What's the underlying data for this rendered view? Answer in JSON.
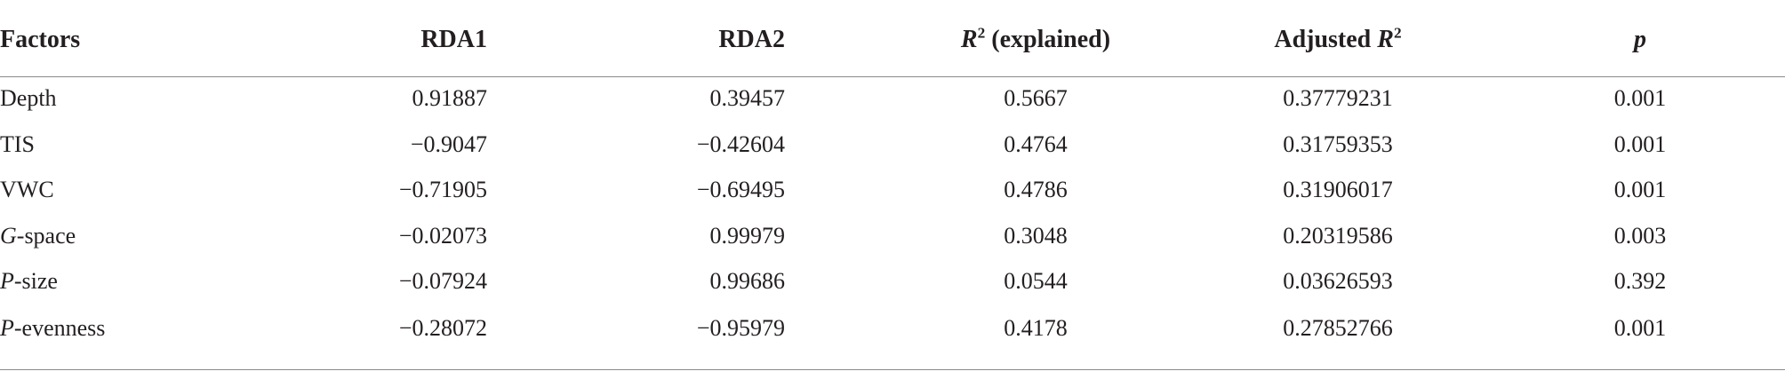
{
  "table": {
    "header": [
      "Factors",
      "RDA1",
      "RDA2",
      [
        "R",
        "2",
        " (explained)"
      ],
      [
        "Adjusted ",
        "R",
        "2"
      ],
      "p"
    ],
    "rows": [
      [
        "Depth",
        "0.91887",
        "0.39457",
        "0.5667",
        "0.37779231",
        "0.001"
      ],
      [
        "TIS",
        "−0.9047",
        "−0.42604",
        "0.4764",
        "0.31759353",
        "0.001"
      ],
      [
        "VWC",
        "−0.71905",
        "−0.69495",
        "0.4786",
        "0.31906017",
        "0.001"
      ],
      [
        [
          "G",
          "-space"
        ],
        "−0.02073",
        "0.99979",
        "0.3048",
        "0.20319586",
        "0.003"
      ],
      [
        [
          "P",
          "-size"
        ],
        "−0.07924",
        "0.99686",
        "0.0544",
        "0.03626593",
        "0.392"
      ],
      [
        [
          "P",
          "-evenness"
        ],
        "−0.28072",
        "−0.95979",
        "0.4178",
        "0.27852766",
        "0.001"
      ]
    ]
  }
}
